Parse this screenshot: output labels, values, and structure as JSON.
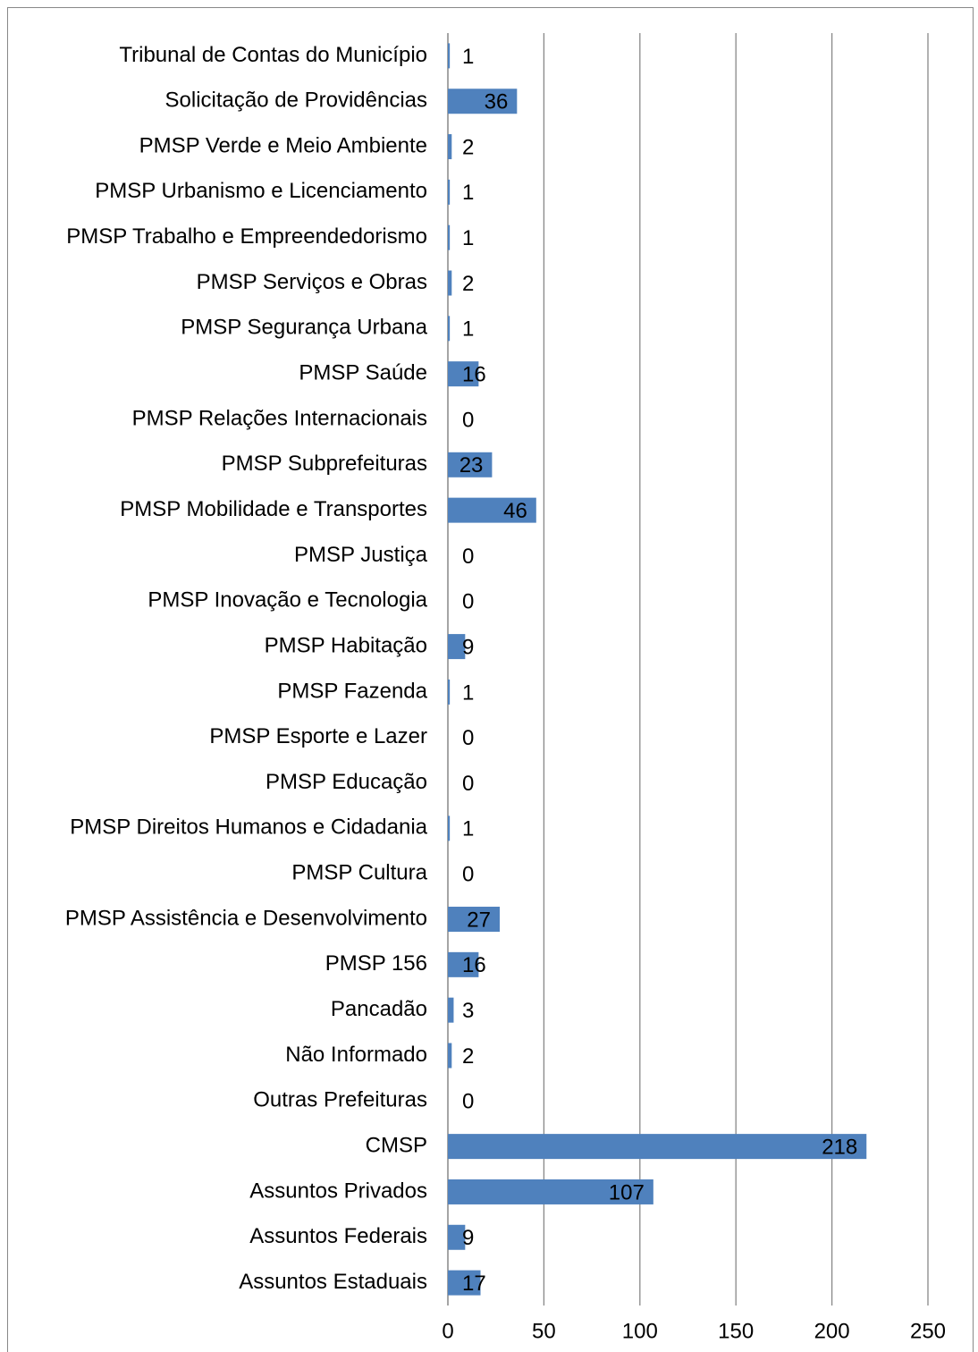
{
  "chart_data": {
    "type": "barh",
    "categories": [
      "Tribunal de Contas do Município",
      "Solicitação de Providências",
      "PMSP Verde e Meio Ambiente",
      "PMSP Urbanismo e Licenciamento",
      "PMSP Trabalho e Empreendedorismo",
      "PMSP Serviços e Obras",
      "PMSP Segurança Urbana",
      "PMSP Saúde",
      "PMSP Relações Internacionais",
      "PMSP Subprefeituras",
      "PMSP Mobilidade e Transportes",
      "PMSP Justiça",
      "PMSP Inovação e Tecnologia",
      "PMSP Habitação",
      "PMSP Fazenda",
      "PMSP Esporte e Lazer",
      "PMSP Educação",
      "PMSP Direitos Humanos e Cidadania",
      "PMSP Cultura",
      "PMSP Assistência e Desenvolvimento",
      "PMSP 156",
      "Pancadão",
      "Não Informado",
      "Outras Prefeituras",
      "CMSP",
      "Assuntos Privados",
      "Assuntos Federais",
      "Assuntos Estaduais"
    ],
    "values": [
      1,
      36,
      2,
      1,
      1,
      2,
      1,
      16,
      0,
      23,
      46,
      0,
      0,
      9,
      1,
      0,
      0,
      1,
      0,
      27,
      16,
      3,
      2,
      0,
      218,
      107,
      9,
      17
    ],
    "color": "#4f81bd",
    "xlim": [
      0,
      250
    ],
    "xticks": [
      0,
      50,
      100,
      150,
      200,
      250
    ],
    "grid": true
  }
}
